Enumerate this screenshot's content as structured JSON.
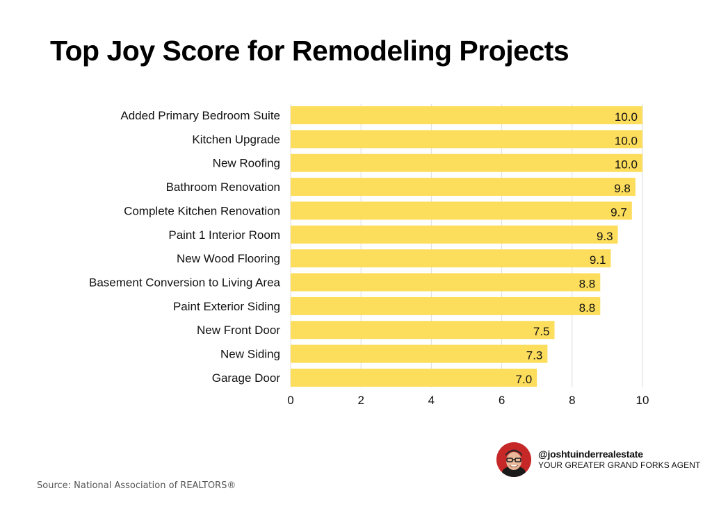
{
  "chart_data": {
    "type": "bar",
    "orientation": "horizontal",
    "title": "Top Joy Score for Remodeling Projects",
    "categories": [
      "Added Primary Bedroom Suite",
      "Kitchen Upgrade",
      "New Roofing",
      "Bathroom Renovation",
      "Complete Kitchen Renovation",
      "Paint 1 Interior Room",
      "New Wood Flooring",
      "Basement Conversion to Living Area",
      "Paint Exterior Siding",
      "New Front Door",
      "New Siding",
      "Garage Door"
    ],
    "values": [
      10.0,
      10.0,
      10.0,
      9.8,
      9.7,
      9.3,
      9.1,
      8.8,
      8.8,
      7.5,
      7.3,
      7.0
    ],
    "value_labels": [
      "10.0",
      "10.0",
      "10.0",
      "9.8",
      "9.7",
      "9.3",
      "9.1",
      "8.8",
      "8.8",
      "7.5",
      "7.3",
      "7.0"
    ],
    "xlim": [
      0,
      10
    ],
    "xticks": [
      0,
      2,
      4,
      6,
      8,
      10
    ],
    "xlabel": "",
    "ylabel": "",
    "grid": true,
    "bar_color": "#FDDD5C"
  },
  "footer": {
    "source": "Source: National Association of REALTORS®"
  },
  "brand": {
    "handle": "@joshtuinderrealestate",
    "tagline": "YOUR GREATER GRAND FORKS AGENT",
    "avatar_color": "#c62828"
  }
}
